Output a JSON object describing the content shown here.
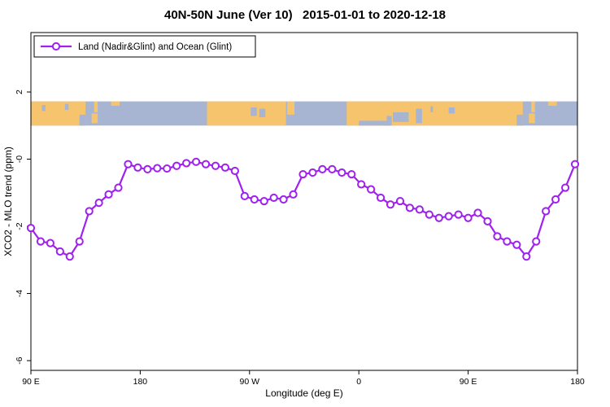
{
  "title": "40N-50N June (Ver 10)   2015-01-01 to 2020-12-18",
  "legend": {
    "label": "Land (Nadir&Glint) and Ocean (Glint)"
  },
  "chart_data": {
    "type": "line",
    "title": "40N-50N June (Ver 10)   2015-01-01 to 2020-12-18",
    "xlabel": "Longitude (deg E)",
    "ylabel": "XCO2 - MLO trend (ppm)",
    "xlim": [
      0,
      450
    ],
    "ylim": [
      -6.29,
      3.77
    ],
    "grid": false,
    "legend_position": "top-left-inside",
    "x_ticks": [
      {
        "offset": 0,
        "label": "90 E"
      },
      {
        "offset": 90,
        "label": "180"
      },
      {
        "offset": 180,
        "label": "90 W"
      },
      {
        "offset": 270,
        "label": "0"
      },
      {
        "offset": 360,
        "label": "90 E"
      },
      {
        "offset": 450,
        "label": "180"
      }
    ],
    "y_ticks": [
      {
        "value": 2,
        "label": "2"
      },
      {
        "value": 0,
        "label": "-0"
      },
      {
        "value": -2,
        "label": "-2"
      },
      {
        "value": -4,
        "label": "-4"
      },
      {
        "value": -6,
        "label": "-6"
      }
    ],
    "series": [
      {
        "name": "Land (Nadir&Glint) and Ocean (Glint)",
        "color": "#a020f0",
        "marker": "open-circle",
        "x_offsets": [
          0,
          8,
          16,
          24,
          32,
          40,
          48,
          56,
          64,
          72,
          80,
          88,
          96,
          104,
          112,
          120,
          128,
          136,
          144,
          152,
          160,
          168,
          176,
          184,
          192,
          200,
          208,
          216,
          224,
          232,
          240,
          248,
          256,
          264,
          272,
          280,
          288,
          296,
          304,
          312,
          320,
          328,
          336,
          344,
          352,
          360,
          368,
          376,
          384,
          392,
          400,
          408,
          416,
          424,
          432,
          440,
          448
        ],
        "values": [
          -2.05,
          -2.45,
          -2.5,
          -2.75,
          -2.9,
          -2.45,
          -1.55,
          -1.3,
          -1.05,
          -0.85,
          -0.15,
          -0.25,
          -0.3,
          -0.27,
          -0.28,
          -0.2,
          -0.12,
          -0.08,
          -0.15,
          -0.2,
          -0.25,
          -0.35,
          -1.1,
          -1.2,
          -1.25,
          -1.15,
          -1.2,
          -1.05,
          -0.45,
          -0.4,
          -0.3,
          -0.3,
          -0.4,
          -0.45,
          -0.75,
          -0.9,
          -1.15,
          -1.35,
          -1.25,
          -1.45,
          -1.5,
          -1.65,
          -1.75,
          -1.7,
          -1.65,
          -1.75,
          -1.6,
          -1.85,
          -2.3,
          -2.45,
          -2.55,
          -2.9,
          -2.45,
          -1.55,
          -1.2,
          -0.85,
          -0.15
        ]
      }
    ],
    "map_band": {
      "description": "40N-50N latitude strip map across plotted longitudes",
      "y_top": 1.72,
      "y_bottom": 1.0,
      "ocean_color": "#a7b5d2",
      "land_color": "#f6c46d",
      "land_segments": [
        {
          "x0": 0,
          "x1": 45
        },
        {
          "x0": 145,
          "x1": 210
        },
        {
          "x0": 260,
          "x1": 405
        },
        {
          "x0": 50,
          "x1": 55,
          "y0": 0.5,
          "y1": 0.9
        },
        {
          "x0": 52,
          "x1": 55,
          "y0": 0,
          "y1": 0.45
        },
        {
          "x0": 66,
          "x1": 73,
          "y0": 0,
          "y1": 0.18
        },
        {
          "x0": 211,
          "x1": 217,
          "y0": 0,
          "y1": 0.55
        },
        {
          "x0": 410,
          "x1": 415,
          "y0": 0.5,
          "y1": 0.9
        },
        {
          "x0": 412,
          "x1": 415,
          "y0": 0,
          "y1": 0.45
        },
        {
          "x0": 426,
          "x1": 433,
          "y0": 0,
          "y1": 0.18
        }
      ],
      "ocean_patches": [
        {
          "x0": 40,
          "x1": 45,
          "y0": 0.55,
          "y1": 1
        },
        {
          "x0": 9,
          "x1": 12,
          "y0": 0.15,
          "y1": 0.4
        },
        {
          "x0": 28,
          "x1": 31,
          "y0": 0.1,
          "y1": 0.35
        },
        {
          "x0": 181,
          "x1": 186,
          "y0": 0.25,
          "y1": 0.6
        },
        {
          "x0": 188,
          "x1": 193,
          "y0": 0.3,
          "y1": 0.65
        },
        {
          "x0": 270,
          "x1": 296,
          "y0": 0.8,
          "y1": 1
        },
        {
          "x0": 293,
          "x1": 297,
          "y0": 0.6,
          "y1": 1
        },
        {
          "x0": 298,
          "x1": 311,
          "y0": 0.45,
          "y1": 0.85
        },
        {
          "x0": 317,
          "x1": 322,
          "y0": 0.3,
          "y1": 0.9
        },
        {
          "x0": 329,
          "x1": 331,
          "y0": 0.2,
          "y1": 0.45
        },
        {
          "x0": 344,
          "x1": 349,
          "y0": 0.25,
          "y1": 0.5
        },
        {
          "x0": 400,
          "x1": 405,
          "y0": 0.55,
          "y1": 1
        }
      ]
    }
  }
}
